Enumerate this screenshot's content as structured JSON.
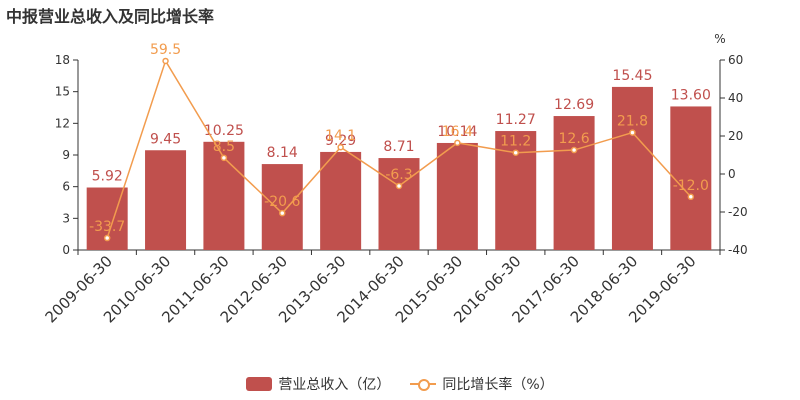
{
  "chart_data": {
    "type": "bar",
    "title": "中报营业总收入及同比增长率",
    "categories": [
      "2009-06-30",
      "2010-06-30",
      "2011-06-30",
      "2012-06-30",
      "2013-06-30",
      "2014-06-30",
      "2015-06-30",
      "2016-06-30",
      "2017-06-30",
      "2018-06-30",
      "2019-06-30"
    ],
    "series": [
      {
        "name": "营业总收入（亿）",
        "type": "bar",
        "axis": "left",
        "color": "#c0504d",
        "values": [
          5.92,
          9.45,
          10.25,
          8.14,
          9.29,
          8.71,
          10.14,
          11.27,
          12.69,
          15.45,
          13.6
        ],
        "labels": [
          "5.92",
          "9.45",
          "10.25",
          "8.14",
          "9.29",
          "8.71",
          "10.14",
          "11.27",
          "12.69",
          "15.45",
          "13.60"
        ]
      },
      {
        "name": "同比增长率（%）",
        "type": "line",
        "axis": "right",
        "color": "#f29c4e",
        "values": [
          -33.7,
          59.5,
          8.5,
          -20.6,
          14.1,
          -6.3,
          16.4,
          11.2,
          12.6,
          21.8,
          -12.0
        ],
        "labels": [
          "-33.7",
          "59.5",
          "8.5",
          "-20.6",
          "14.1",
          "-6.3",
          "16.4",
          "11.2",
          "12.6",
          "21.8",
          "-12.0"
        ]
      }
    ],
    "ylim_left": [
      0,
      18
    ],
    "yticks_left": [
      "0",
      "3",
      "6",
      "9",
      "12",
      "15",
      "18"
    ],
    "ylim_right": [
      -40,
      60
    ],
    "yticks_right": [
      "-40",
      "-20",
      "0",
      "20",
      "40",
      "60"
    ],
    "ylabel_right": "%",
    "grid": false,
    "legend_position": "bottom-center"
  }
}
